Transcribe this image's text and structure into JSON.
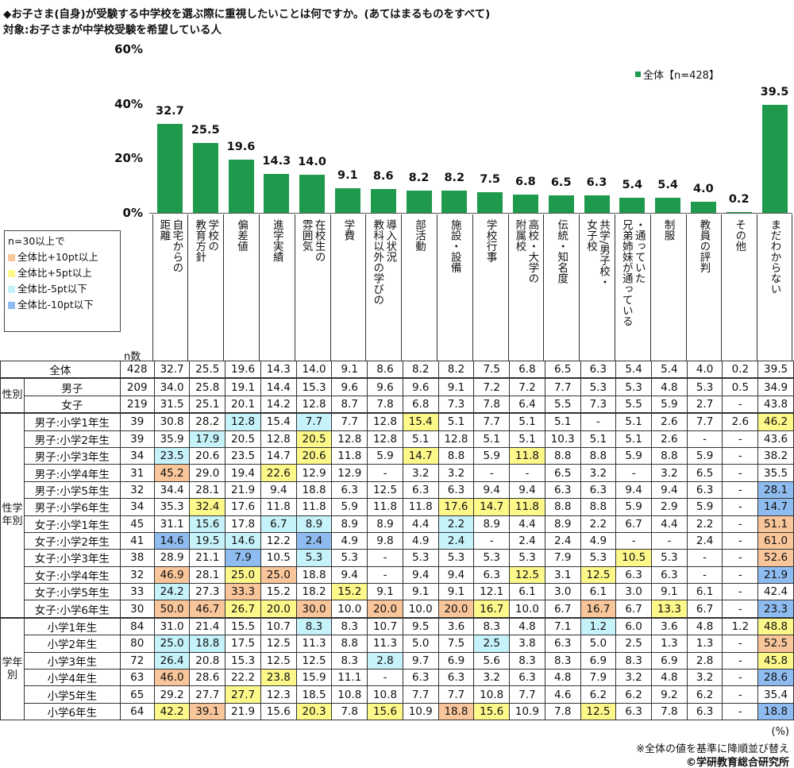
{
  "title": "◆お子さま(自身)が受験する中学校を選ぶ際に重視したいことは何ですか。(あてはまるものをすべて)",
  "subtitle": "対象:お子さまが中学校受験を希望している人",
  "highlight_legend": {
    "heading": "n=30以上で",
    "items": [
      {
        "key": "o",
        "label": "全体比+10pt以上",
        "color": "#f9c59a"
      },
      {
        "key": "y",
        "label": "全体比+5pt以上",
        "color": "#fdf88a"
      },
      {
        "key": "c",
        "label": "全体比-5pt以下",
        "color": "#c6f2fa"
      },
      {
        "key": "b",
        "label": "全体比-10pt以下",
        "color": "#8fbcf0"
      }
    ]
  },
  "n_header": "n数",
  "chart_data": {
    "type": "bar",
    "title": "◆お子さま(自身)が受験する中学校を選ぶ際に重視したいことは何ですか。(あてはまるものをすべて)",
    "legend": "全体【n=428】",
    "legend_position": "top-right",
    "color": "#1f9a4c",
    "ylim": [
      0,
      60
    ],
    "yticks": [
      "0%",
      "20%",
      "40%",
      "60%"
    ],
    "ytick_values": [
      0,
      20,
      40,
      60
    ],
    "categories": [
      "自宅からの\n距離",
      "学校の\n教育方針",
      "偏差値",
      "進学実績",
      "在校生の\n雰囲気",
      "学費",
      "導入状況\n教科以外の学びの",
      "部活動",
      "施設・設備",
      "学校行事",
      "高校・大学の\n附属校",
      "伝統・知名度",
      "共学/男子校・\n女子校",
      "・通っていた\n兄弟姉妹が通っている",
      "制服",
      "教員の評判",
      "その他",
      "まだわからない"
    ],
    "values": [
      32.7,
      25.5,
      19.6,
      14.3,
      14.0,
      9.1,
      8.6,
      8.2,
      8.2,
      7.5,
      6.8,
      6.5,
      6.3,
      5.4,
      5.4,
      4.0,
      0.2,
      39.5
    ],
    "value_labels": [
      "32.7",
      "25.5",
      "19.6",
      "14.3",
      "14.0",
      "9.1",
      "8.6",
      "8.2",
      "8.2",
      "7.5",
      "6.8",
      "6.5",
      "6.3",
      "5.4",
      "5.4",
      "4.0",
      "0.2",
      "39.5"
    ]
  },
  "table": {
    "groups": [
      {
        "label": "",
        "rows": [
          {
            "label": "全体",
            "n": "428",
            "values": [
              "32.7",
              "25.5",
              "19.6",
              "14.3",
              "14.0",
              "9.1",
              "8.6",
              "8.2",
              "8.2",
              "7.5",
              "6.8",
              "6.5",
              "6.3",
              "5.4",
              "5.4",
              "4.0",
              "0.2",
              "39.5"
            ],
            "hl": ".................."
          }
        ]
      },
      {
        "label": "性別",
        "rows": [
          {
            "label": "男子",
            "n": "209",
            "values": [
              "34.0",
              "25.8",
              "19.1",
              "14.4",
              "15.3",
              "9.6",
              "9.6",
              "9.6",
              "9.1",
              "7.2",
              "7.2",
              "7.7",
              "5.3",
              "5.3",
              "4.8",
              "5.3",
              "0.5",
              "34.9"
            ],
            "hl": ".................."
          },
          {
            "label": "女子",
            "n": "219",
            "values": [
              "31.5",
              "25.1",
              "20.1",
              "14.2",
              "12.8",
              "8.7",
              "7.8",
              "6.8",
              "7.3",
              "7.8",
              "6.4",
              "5.5",
              "7.3",
              "5.5",
              "5.9",
              "2.7",
              "-",
              "43.8"
            ],
            "hl": ".................."
          }
        ]
      },
      {
        "label": "性学年別",
        "rows": [
          {
            "label": "男子:小学1年生",
            "n": "39",
            "values": [
              "30.8",
              "28.2",
              "12.8",
              "15.4",
              "7.7",
              "7.7",
              "12.8",
              "15.4",
              "5.1",
              "7.7",
              "5.1",
              "5.1",
              "-",
              "5.1",
              "2.6",
              "7.7",
              "2.6",
              "46.2"
            ],
            "hl": "..c.c..y.........y"
          },
          {
            "label": "男子:小学2年生",
            "n": "39",
            "values": [
              "35.9",
              "17.9",
              "20.5",
              "12.8",
              "20.5",
              "12.8",
              "12.8",
              "5.1",
              "12.8",
              "5.1",
              "5.1",
              "10.3",
              "5.1",
              "5.1",
              "2.6",
              "-",
              "-",
              "43.6"
            ],
            "hl": ".c..y............."
          },
          {
            "label": "男子:小学3年生",
            "n": "34",
            "values": [
              "23.5",
              "20.6",
              "23.5",
              "14.7",
              "20.6",
              "11.8",
              "5.9",
              "14.7",
              "8.8",
              "5.9",
              "11.8",
              "8.8",
              "8.8",
              "5.9",
              "8.8",
              "5.9",
              "-",
              "38.2"
            ],
            "hl": "c...y..y..y......."
          },
          {
            "label": "男子:小学4年生",
            "n": "31",
            "values": [
              "45.2",
              "29.0",
              "19.4",
              "22.6",
              "12.9",
              "12.9",
              "-",
              "3.2",
              "3.2",
              "-",
              "-",
              "6.5",
              "3.2",
              "-",
              "3.2",
              "6.5",
              "-",
              "35.5"
            ],
            "hl": "o..y.............."
          },
          {
            "label": "男子:小学5年生",
            "n": "32",
            "values": [
              "34.4",
              "28.1",
              "21.9",
              "9.4",
              "18.8",
              "6.3",
              "12.5",
              "6.3",
              "6.3",
              "9.4",
              "9.4",
              "6.3",
              "6.3",
              "9.4",
              "9.4",
              "6.3",
              "-",
              "28.1"
            ],
            "hl": ".................b"
          },
          {
            "label": "男子:小学6年生",
            "n": "34",
            "values": [
              "35.3",
              "32.4",
              "17.6",
              "11.8",
              "11.8",
              "5.9",
              "11.8",
              "11.8",
              "17.6",
              "14.7",
              "11.8",
              "8.8",
              "8.8",
              "5.9",
              "2.9",
              "5.9",
              "-",
              "14.7"
            ],
            "hl": ".y......yyy......b"
          },
          {
            "label": "女子:小学1年生",
            "n": "45",
            "values": [
              "31.1",
              "15.6",
              "17.8",
              "6.7",
              "8.9",
              "8.9",
              "8.9",
              "4.4",
              "2.2",
              "8.9",
              "4.4",
              "8.9",
              "2.2",
              "6.7",
              "4.4",
              "2.2",
              "-",
              "51.1"
            ],
            "hl": ".c.cc...c........o"
          },
          {
            "label": "女子:小学2年生",
            "n": "41",
            "values": [
              "14.6",
              "19.5",
              "14.6",
              "12.2",
              "2.4",
              "4.9",
              "9.8",
              "4.9",
              "2.4",
              "-",
              "2.4",
              "2.4",
              "4.9",
              "-",
              "-",
              "2.4",
              "-",
              "61.0"
            ],
            "hl": "bcc.b...c........o"
          },
          {
            "label": "女子:小学3年生",
            "n": "38",
            "values": [
              "28.9",
              "21.1",
              "7.9",
              "10.5",
              "5.3",
              "5.3",
              "-",
              "5.3",
              "5.3",
              "5.3",
              "5.3",
              "7.9",
              "5.3",
              "10.5",
              "5.3",
              "-",
              "-",
              "52.6"
            ],
            "hl": "..b.c........y...o"
          },
          {
            "label": "女子:小学4年生",
            "n": "32",
            "values": [
              "46.9",
              "28.1",
              "25.0",
              "25.0",
              "18.8",
              "9.4",
              "-",
              "9.4",
              "9.4",
              "6.3",
              "12.5",
              "3.1",
              "12.5",
              "6.3",
              "6.3",
              "-",
              "-",
              "21.9"
            ],
            "hl": "o.yo......y.y....b"
          },
          {
            "label": "女子:小学5年生",
            "n": "33",
            "values": [
              "24.2",
              "27.3",
              "33.3",
              "15.2",
              "18.2",
              "15.2",
              "9.1",
              "9.1",
              "9.1",
              "12.1",
              "6.1",
              "3.0",
              "6.1",
              "3.0",
              "9.1",
              "6.1",
              "-",
              "42.4"
            ],
            "hl": "c.o..y............"
          },
          {
            "label": "女子:小学6年生",
            "n": "30",
            "values": [
              "50.0",
              "46.7",
              "26.7",
              "20.0",
              "30.0",
              "10.0",
              "20.0",
              "10.0",
              "20.0",
              "16.7",
              "10.0",
              "6.7",
              "16.7",
              "6.7",
              "13.3",
              "6.7",
              "-",
              "23.3"
            ],
            "hl": "ooyyo.o.oy..o.y..b"
          }
        ]
      },
      {
        "label": "学年別",
        "rows": [
          {
            "label": "小学1年生",
            "n": "84",
            "values": [
              "31.0",
              "21.4",
              "15.5",
              "10.7",
              "8.3",
              "8.3",
              "10.7",
              "9.5",
              "3.6",
              "8.3",
              "4.8",
              "7.1",
              "1.2",
              "6.0",
              "3.6",
              "4.8",
              "1.2",
              "48.8"
            ],
            "hl": "....c.......c....y"
          },
          {
            "label": "小学2年生",
            "n": "80",
            "values": [
              "25.0",
              "18.8",
              "17.5",
              "12.5",
              "11.3",
              "8.8",
              "11.3",
              "5.0",
              "7.5",
              "2.5",
              "3.8",
              "6.3",
              "5.0",
              "2.5",
              "1.3",
              "1.3",
              "-",
              "52.5"
            ],
            "hl": "cc.......c.......o"
          },
          {
            "label": "小学3年生",
            "n": "72",
            "values": [
              "26.4",
              "20.8",
              "15.3",
              "12.5",
              "12.5",
              "8.3",
              "2.8",
              "9.7",
              "6.9",
              "5.6",
              "8.3",
              "8.3",
              "6.9",
              "8.3",
              "6.9",
              "2.8",
              "-",
              "45.8"
            ],
            "hl": "c.....c..........y"
          },
          {
            "label": "小学4年生",
            "n": "63",
            "values": [
              "46.0",
              "28.6",
              "22.2",
              "23.8",
              "15.9",
              "11.1",
              "-",
              "6.3",
              "6.3",
              "3.2",
              "6.3",
              "4.8",
              "7.9",
              "3.2",
              "4.8",
              "3.2",
              "-",
              "28.6"
            ],
            "hl": "o..y.............b"
          },
          {
            "label": "小学5年生",
            "n": "65",
            "values": [
              "29.2",
              "27.7",
              "27.7",
              "12.3",
              "18.5",
              "10.8",
              "10.8",
              "7.7",
              "7.7",
              "10.8",
              "7.7",
              "4.6",
              "6.2",
              "6.2",
              "9.2",
              "6.2",
              "-",
              "35.4"
            ],
            "hl": "..y..............."
          },
          {
            "label": "小学6年生",
            "n": "64",
            "values": [
              "42.2",
              "39.1",
              "21.9",
              "15.6",
              "20.3",
              "7.8",
              "15.6",
              "10.9",
              "18.8",
              "15.6",
              "10.9",
              "7.8",
              "12.5",
              "6.3",
              "7.8",
              "6.3",
              "-",
              "18.8"
            ],
            "hl": "yo..y.y.oy..y....b"
          }
        ]
      }
    ]
  },
  "footer": {
    "unit": "(%)",
    "note": "※全体の値を基準に降順並び替え",
    "credit": "©学研教育総合研究所"
  }
}
